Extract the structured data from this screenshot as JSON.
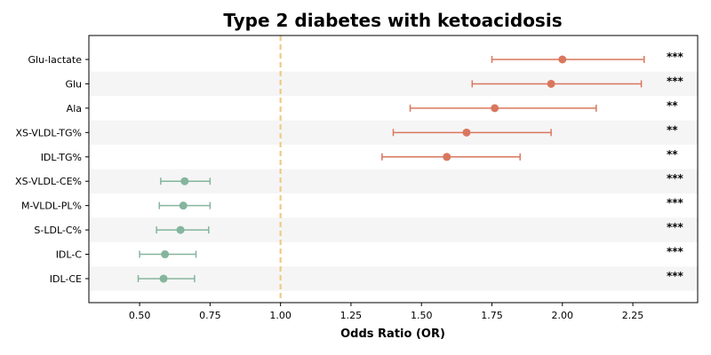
{
  "chart_data": {
    "type": "forest",
    "title": "Type 2 diabetes with ketoacidosis",
    "xlabel": "Odds Ratio (OR)",
    "ylabel": "",
    "xlim": [
      0.32,
      2.48
    ],
    "xticks": [
      "0.50",
      "0.75",
      "1.00",
      "1.25",
      "1.50",
      "1.75",
      "2.00",
      "2.25"
    ],
    "reference_line": 1.0,
    "rows": [
      {
        "label": "Glu-lactate",
        "or": 2.0,
        "ci": [
          1.75,
          2.29
        ],
        "sig": "***"
      },
      {
        "label": "Glu",
        "or": 1.96,
        "ci": [
          1.68,
          2.28
        ],
        "sig": "***"
      },
      {
        "label": "Ala",
        "or": 1.76,
        "ci": [
          1.46,
          2.12
        ],
        "sig": "**"
      },
      {
        "label": "XS-VLDL-TG%",
        "or": 1.66,
        "ci": [
          1.4,
          1.96
        ],
        "sig": "**"
      },
      {
        "label": "IDL-TG%",
        "or": 1.59,
        "ci": [
          1.36,
          1.85
        ],
        "sig": "**"
      },
      {
        "label": "XS-VLDL-CE%",
        "or": 0.66,
        "ci": [
          0.575,
          0.75
        ],
        "sig": "***"
      },
      {
        "label": "M-VLDL-PL%",
        "or": 0.655,
        "ci": [
          0.57,
          0.75
        ],
        "sig": "***"
      },
      {
        "label": "S-LDL-C%",
        "or": 0.645,
        "ci": [
          0.56,
          0.745
        ],
        "sig": "***"
      },
      {
        "label": "IDL-C",
        "or": 0.59,
        "ci": [
          0.5,
          0.7
        ],
        "sig": "***"
      },
      {
        "label": "IDL-CE",
        "or": 0.585,
        "ci": [
          0.495,
          0.695
        ],
        "sig": "***"
      }
    ],
    "colors": {
      "risk": "#d9775e",
      "protective": "#85b59d",
      "reference": "#f0c987",
      "stripe": "#f5f5f5"
    },
    "grid": false,
    "legend": "none"
  }
}
